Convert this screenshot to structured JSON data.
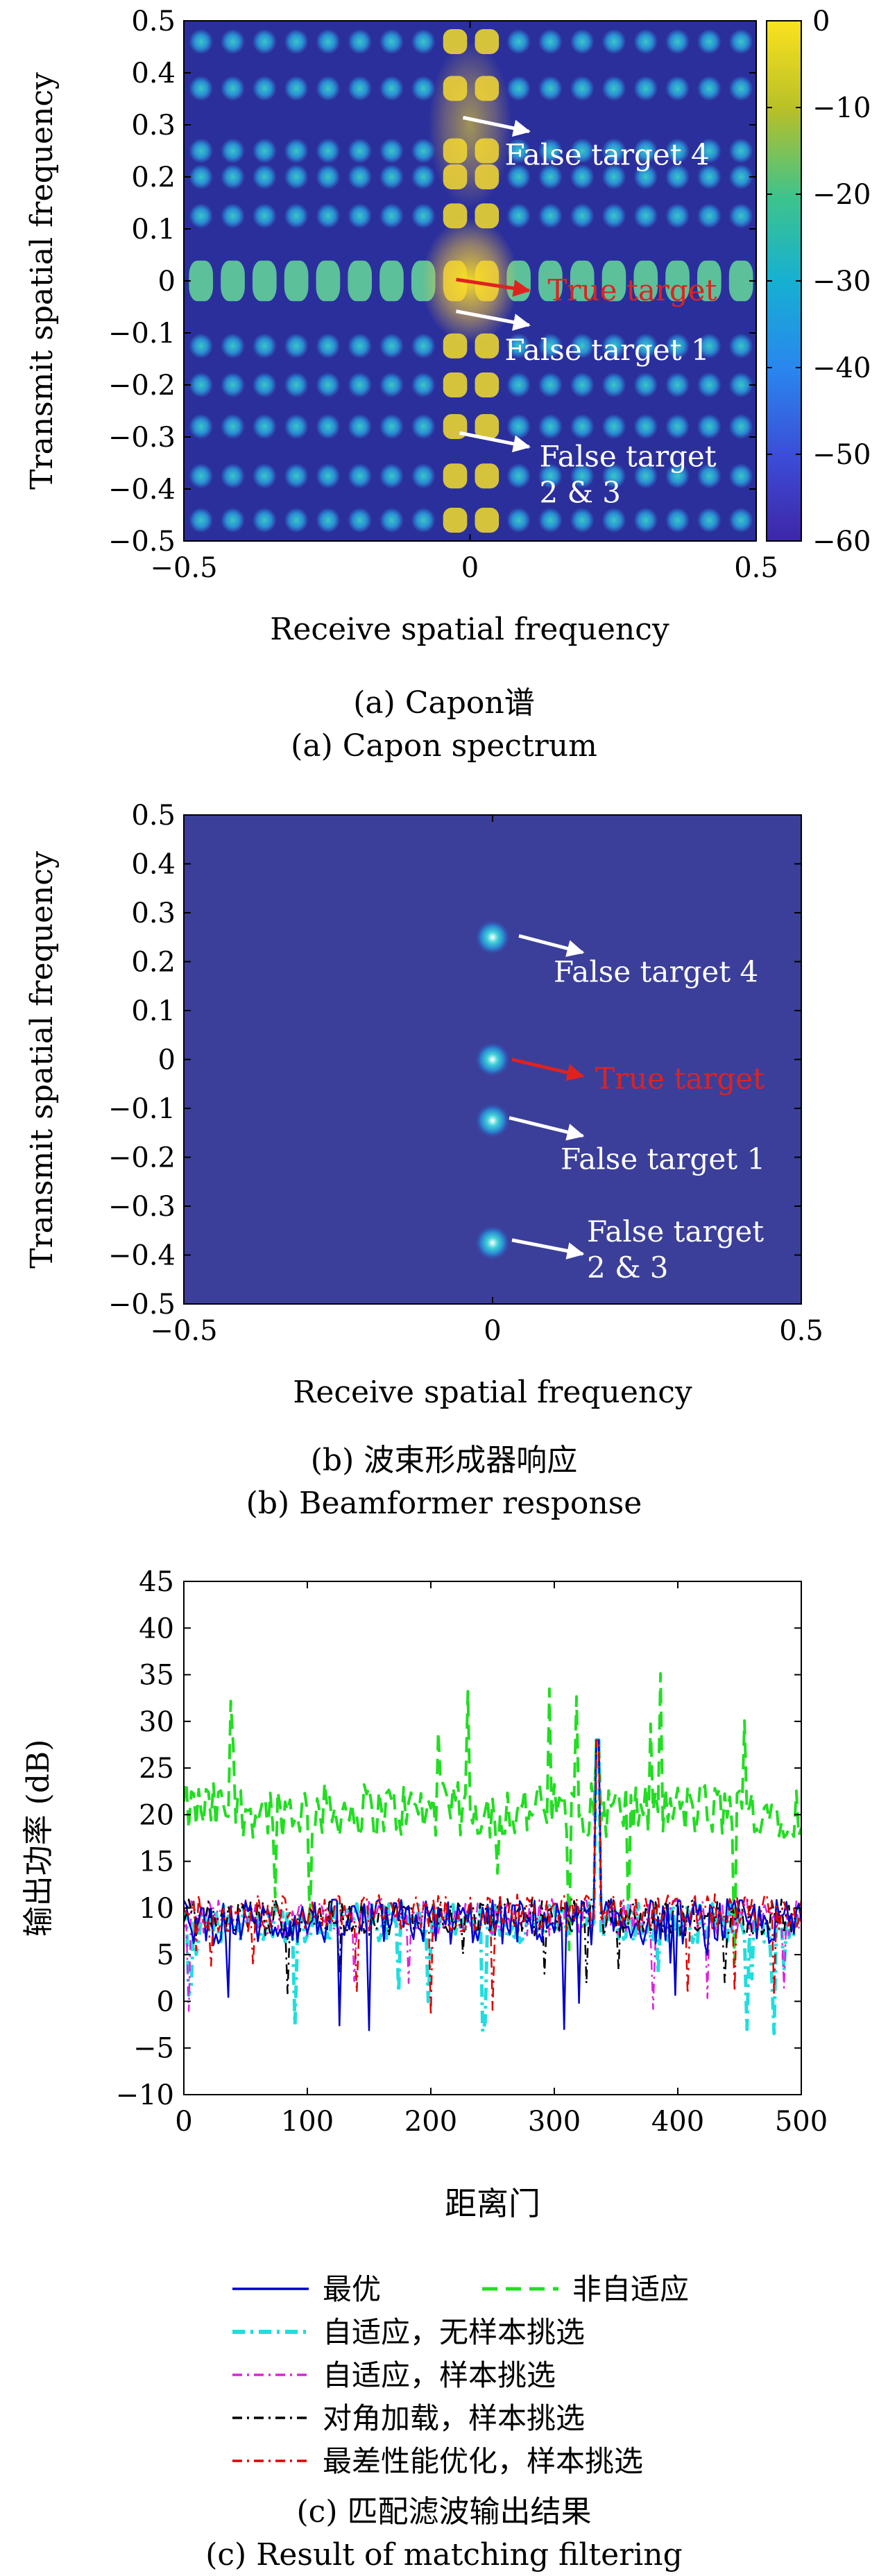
{
  "chart_data": [
    {
      "type": "heatmap",
      "caption_cn": "(a) Capon谱",
      "caption_en": "(a) Capon spectrum",
      "xlabel": "Receive spatial frequency",
      "ylabel": "Transmit spatial frequency",
      "xlim": [
        -0.5,
        0.5
      ],
      "ylim": [
        -0.5,
        0.5
      ],
      "xticks": [
        "−0.5",
        "0",
        "0.5"
      ],
      "yticks": [
        "0.5",
        "0.4",
        "0.3",
        "0.2",
        "0.1",
        "0",
        "−0.1",
        "−0.2",
        "−0.3",
        "−0.4",
        "−0.5"
      ],
      "colorbar": {
        "range": [
          -60,
          0
        ],
        "ticks": [
          "0",
          "−10",
          "−20",
          "−30",
          "−40",
          "−50",
          "−60"
        ]
      },
      "annotations": [
        {
          "text": "False target 4",
          "color": "#ffffff",
          "point": [
            0,
            0.25
          ]
        },
        {
          "text": "True target",
          "color": "#e0221f",
          "point": [
            0,
            0
          ]
        },
        {
          "text": "False target 1",
          "color": "#ffffff",
          "point": [
            0,
            -0.125
          ]
        },
        {
          "text": "False target",
          "text2": "2 & 3",
          "color": "#ffffff",
          "point": [
            0,
            -0.375
          ]
        }
      ]
    },
    {
      "type": "heatmap",
      "caption_cn": "(b) 波束形成器响应",
      "caption_en": "(b) Beamformer response",
      "xlabel": "Receive spatial frequency",
      "ylabel": "Transmit spatial frequency",
      "xlim": [
        -0.5,
        0.5
      ],
      "ylim": [
        -0.5,
        0.5
      ],
      "xticks": [
        "−0.5",
        "0",
        "0.5"
      ],
      "yticks": [
        "0.5",
        "0.4",
        "0.3",
        "0.2",
        "0.1",
        "0",
        "−0.1",
        "−0.2",
        "−0.3",
        "−0.4",
        "−0.5"
      ],
      "peaks": [
        {
          "x": 0,
          "y": 0.25
        },
        {
          "x": 0,
          "y": 0
        },
        {
          "x": 0,
          "y": -0.125
        },
        {
          "x": 0,
          "y": -0.375
        }
      ],
      "annotations": [
        {
          "text": "False target 4",
          "color": "#ffffff",
          "point": [
            0,
            0.25
          ]
        },
        {
          "text": "True target",
          "color": "#e0221f",
          "point": [
            0,
            0
          ]
        },
        {
          "text": "False target 1",
          "color": "#ffffff",
          "point": [
            0,
            -0.125
          ]
        },
        {
          "text": "False target",
          "text2": "2 & 3",
          "color": "#ffffff",
          "point": [
            0,
            -0.375
          ]
        }
      ]
    },
    {
      "type": "line",
      "caption_cn": "(c) 匹配滤波输出结果",
      "caption_en": "(c) Result of matching filtering",
      "xlabel": "距离门",
      "ylabel": "输出功率 (dB)",
      "xlim": [
        0,
        500
      ],
      "ylim": [
        -10,
        45
      ],
      "xticks": [
        "0",
        "100",
        "200",
        "300",
        "400",
        "500"
      ],
      "yticks": [
        "45",
        "40",
        "35",
        "30",
        "25",
        "20",
        "15",
        "10",
        "5",
        "0",
        "−5",
        "−10"
      ],
      "target_gate": 335,
      "target_peak": 28,
      "series": [
        {
          "name": "最优",
          "color": "#0000cc",
          "style": "solid",
          "baseline": 8.5,
          "spread": 2.5
        },
        {
          "name": "非自适应",
          "color": "#22dd22",
          "style": "dashed",
          "baseline": 20.5,
          "spread": 3.0
        },
        {
          "name": "自适应，无样本挑选",
          "color": "#22dddd",
          "style": "dashdot-thick",
          "baseline": 8.5,
          "spread": 2.2
        },
        {
          "name": "自适应，样本挑选",
          "color": "#dd22dd",
          "style": "dashdot",
          "baseline": 9.0,
          "spread": 2.0
        },
        {
          "name": "对角加载，样本挑选",
          "color": "#000000",
          "style": "dashdot",
          "baseline": 9.0,
          "spread": 2.0
        },
        {
          "name": "最差性能优化，样本挑选",
          "color": "#dd0000",
          "style": "dashdot",
          "baseline": 9.5,
          "spread": 2.0
        }
      ]
    }
  ]
}
